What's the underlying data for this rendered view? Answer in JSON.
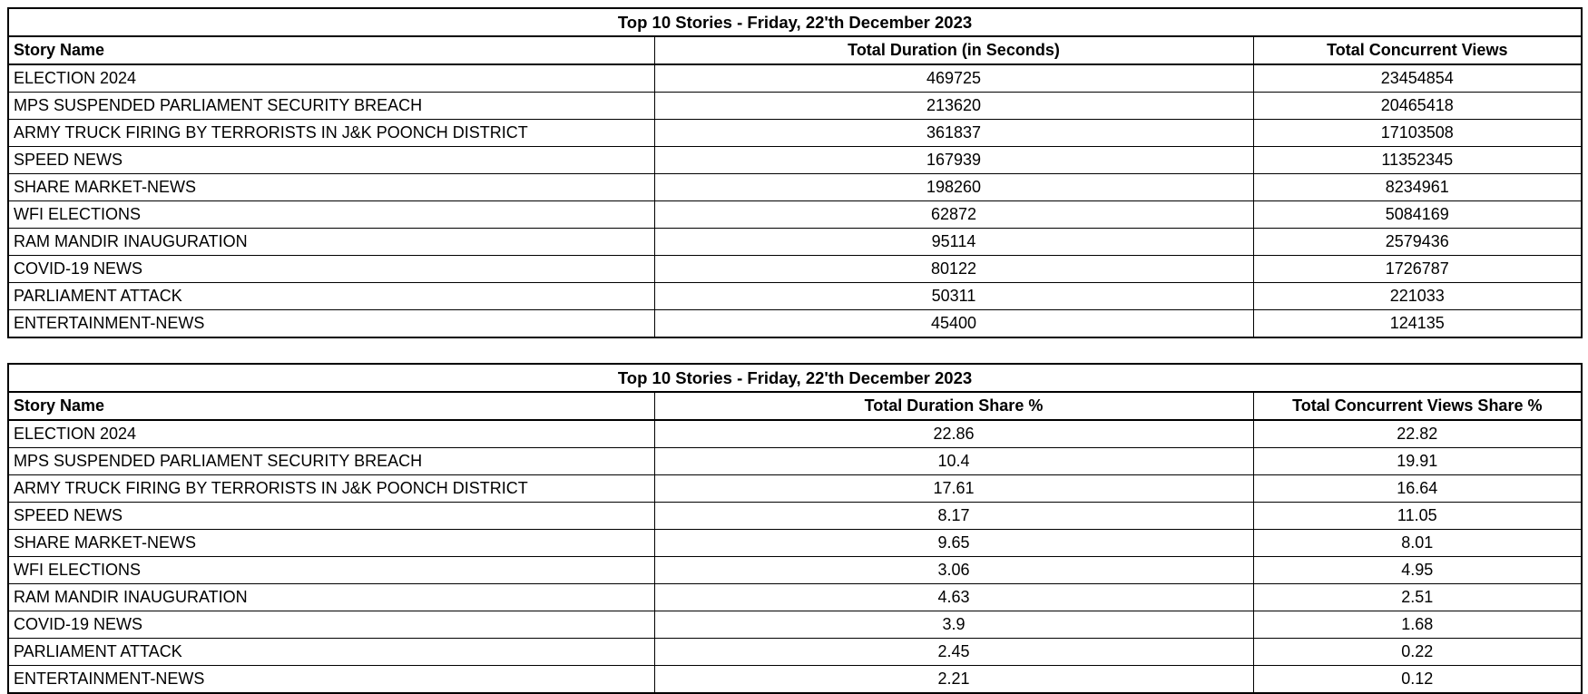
{
  "page": {
    "background_color": "#ffffff",
    "border_color": "#000000",
    "text_color": "#000000"
  },
  "chart_data": [
    {
      "type": "table",
      "title": "Top 10 Stories - Friday, 22'th December 2023",
      "columns": [
        "Story Name",
        "Total Duration (in Seconds)",
        "Total Concurrent Views"
      ],
      "rows": [
        [
          "ELECTION 2024",
          "469725",
          "23454854"
        ],
        [
          "MPS SUSPENDED PARLIAMENT SECURITY BREACH",
          "213620",
          "20465418"
        ],
        [
          "ARMY TRUCK FIRING BY TERRORISTS IN J&K POONCH DISTRICT",
          "361837",
          "17103508"
        ],
        [
          "SPEED NEWS",
          "167939",
          "11352345"
        ],
        [
          "SHARE MARKET-NEWS",
          "198260",
          "8234961"
        ],
        [
          "WFI ELECTIONS",
          "62872",
          "5084169"
        ],
        [
          "RAM MANDIR INAUGURATION",
          "95114",
          "2579436"
        ],
        [
          "COVID-19 NEWS",
          "80122",
          "1726787"
        ],
        [
          "PARLIAMENT ATTACK",
          "50311",
          "221033"
        ],
        [
          "ENTERTAINMENT-NEWS",
          "45400",
          "124135"
        ]
      ]
    },
    {
      "type": "table",
      "title": "Top 10 Stories - Friday, 22'th December 2023",
      "columns": [
        "Story Name",
        "Total Duration Share %",
        "Total Concurrent Views Share %"
      ],
      "rows": [
        [
          "ELECTION 2024",
          "22.86",
          "22.82"
        ],
        [
          "MPS SUSPENDED PARLIAMENT SECURITY BREACH",
          "10.4",
          "19.91"
        ],
        [
          "ARMY TRUCK FIRING BY TERRORISTS IN J&K POONCH DISTRICT",
          "17.61",
          "16.64"
        ],
        [
          "SPEED NEWS",
          "8.17",
          "11.05"
        ],
        [
          "SHARE MARKET-NEWS",
          "9.65",
          "8.01"
        ],
        [
          "WFI ELECTIONS",
          "3.06",
          "4.95"
        ],
        [
          "RAM MANDIR INAUGURATION",
          "4.63",
          "2.51"
        ],
        [
          "COVID-19 NEWS",
          "3.9",
          "1.68"
        ],
        [
          "PARLIAMENT ATTACK",
          "2.45",
          "0.22"
        ],
        [
          "ENTERTAINMENT-NEWS",
          "2.21",
          "0.12"
        ]
      ]
    }
  ]
}
